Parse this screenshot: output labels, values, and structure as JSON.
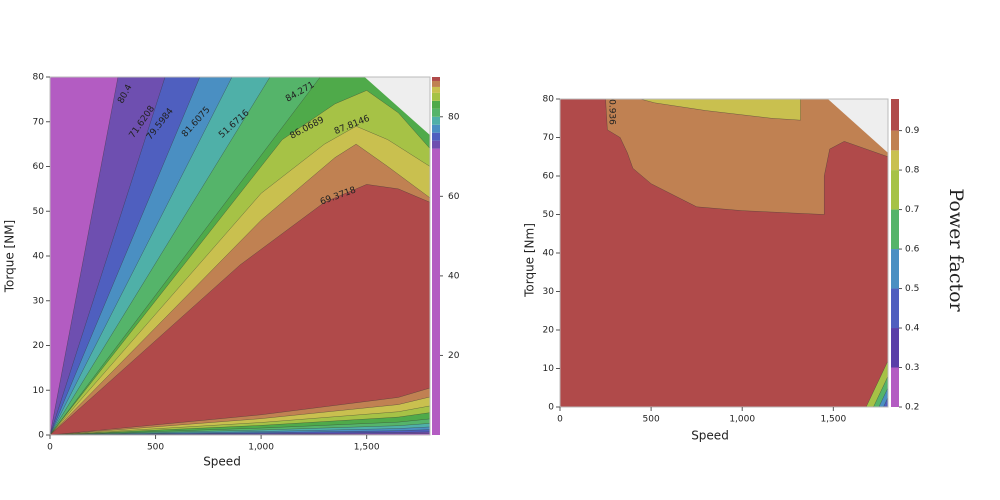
{
  "chart_data": [
    {
      "type": "contour",
      "x_label": "Speed",
      "y_label": "Torque [NM]",
      "xlim": [
        0,
        1800
      ],
      "xticks": [
        0,
        500,
        {
          "value": 1000,
          "label": "1,000"
        },
        {
          "value": 1500,
          "label": "1,500"
        }
      ],
      "ylim": [
        0,
        80
      ],
      "yticks": [
        0,
        10,
        20,
        30,
        40,
        50,
        60,
        70,
        80
      ],
      "clim": [
        0,
        90
      ],
      "cticks": [
        20,
        40,
        60,
        80
      ],
      "levels": [
        0,
        72,
        74,
        76,
        78,
        80,
        82,
        84,
        86,
        87.5,
        89,
        90
      ],
      "colors": [
        "#b35cc2",
        "#6e4fb0",
        "#4f5fbf",
        "#4a8fc2",
        "#4fb0a8",
        "#55b46a",
        "#4faa4a",
        "#a6c246",
        "#c9c04f",
        "#c08152",
        "#b04a4a"
      ],
      "contour_labels": [
        "80.4",
        "71.6208",
        "79.5984",
        "81.6075",
        "51.6716",
        "84.271",
        "86.0689",
        "87.8146",
        "69.3718"
      ]
    },
    {
      "type": "contour",
      "x_label": "Speed",
      "y_label": "Torque [Nm]",
      "colorbar_label": "Power factor",
      "xlim": [
        0,
        1800
      ],
      "xticks": [
        0,
        500,
        {
          "value": 1000,
          "label": "1,000"
        },
        {
          "value": 1500,
          "label": "1,500"
        }
      ],
      "ylim": [
        0,
        80
      ],
      "yticks": [
        0,
        10,
        20,
        30,
        40,
        50,
        60,
        70,
        80
      ],
      "clim": [
        0.2,
        0.98
      ],
      "cticks": [
        0.2,
        0.3,
        0.4,
        0.5,
        0.6,
        0.7,
        0.8,
        0.9
      ],
      "levels": [
        0.2,
        0.3,
        0.4,
        0.5,
        0.6,
        0.7,
        0.8,
        0.85,
        0.9,
        0.98
      ],
      "colors": [
        "#b35cc2",
        "#5a3fa8",
        "#4f5fbf",
        "#4a8fc2",
        "#55b46a",
        "#a6c246",
        "#c9c04f",
        "#c08152",
        "#b04a4a"
      ],
      "contour_labels": [
        "0.936"
      ]
    }
  ]
}
